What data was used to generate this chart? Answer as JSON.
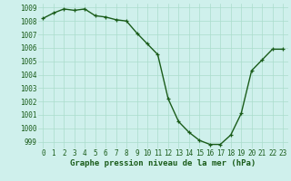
{
  "hours": [
    0,
    1,
    2,
    3,
    4,
    5,
    6,
    7,
    8,
    9,
    10,
    11,
    12,
    13,
    14,
    15,
    16,
    17,
    18,
    19,
    20,
    21,
    22,
    23
  ],
  "pressure": [
    1008.2,
    1008.6,
    1008.9,
    1008.8,
    1008.9,
    1008.4,
    1008.3,
    1008.1,
    1008.0,
    1007.1,
    1006.3,
    1005.5,
    1002.2,
    1000.5,
    999.7,
    999.1,
    998.8,
    998.8,
    999.5,
    1001.1,
    1004.3,
    1005.1,
    1005.9,
    1005.9
  ],
  "line_color": "#1a5c1a",
  "marker": "+",
  "bg_color": "#cff0ec",
  "grid_color": "#aaddcc",
  "title": "Graphe pression niveau de la mer (hPa)",
  "ylim_min": 998.5,
  "ylim_max": 1009.3,
  "yticks": [
    999,
    1000,
    1001,
    1002,
    1003,
    1004,
    1005,
    1006,
    1007,
    1008,
    1009
  ],
  "tick_fontsize": 5.5,
  "title_fontsize": 6.5,
  "linewidth": 1.0,
  "markersize": 3.5,
  "markeredgewidth": 0.9
}
